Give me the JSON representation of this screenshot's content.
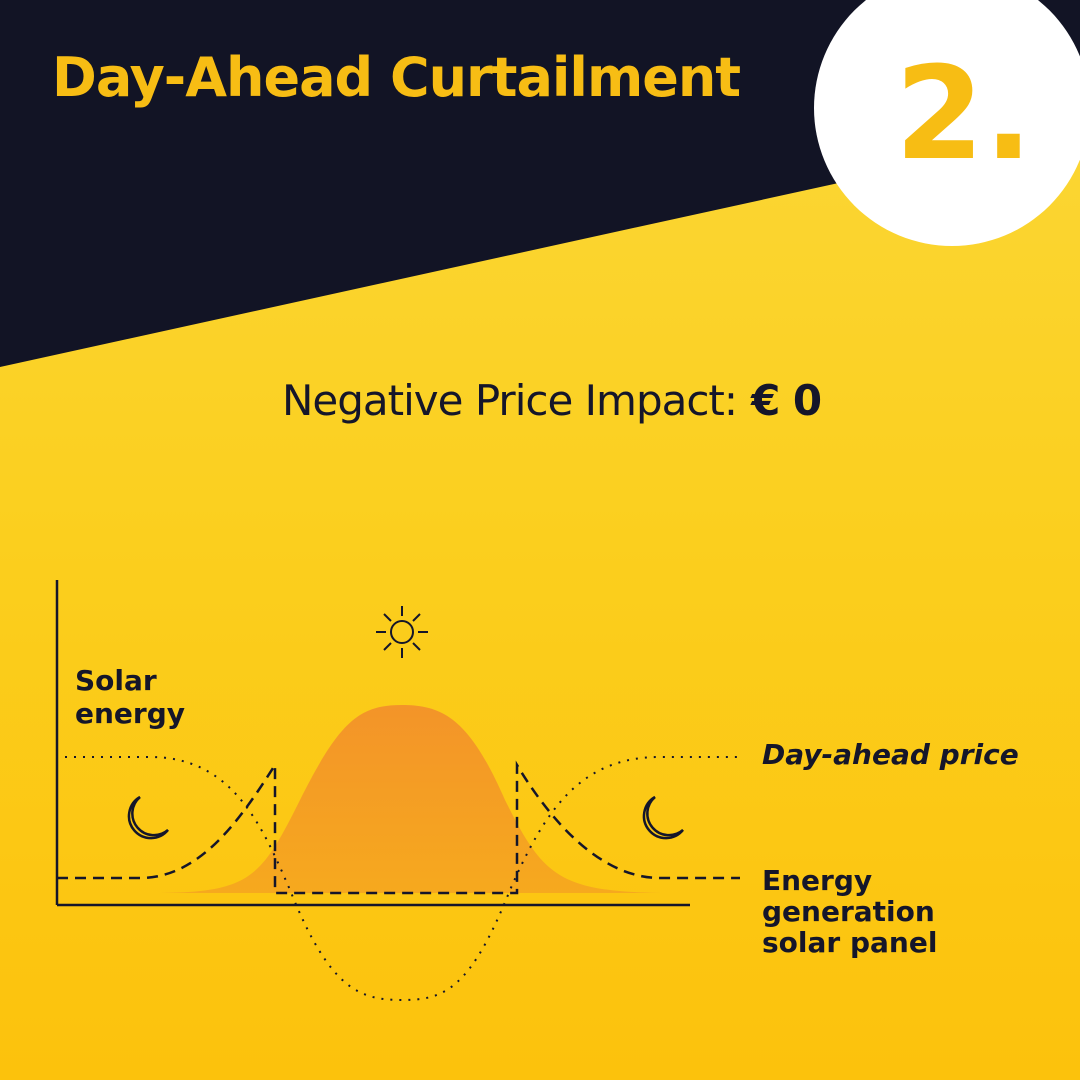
{
  "header": {
    "title": "Day-Ahead Curtailment",
    "step": "2."
  },
  "impact": {
    "label": "Negative Price Impact:",
    "value": "€ 0"
  },
  "diagram": {
    "y_axis_label": "Solar energy",
    "price_label": "Day-ahead price",
    "generation_label": "Energy generation solar panel"
  }
}
